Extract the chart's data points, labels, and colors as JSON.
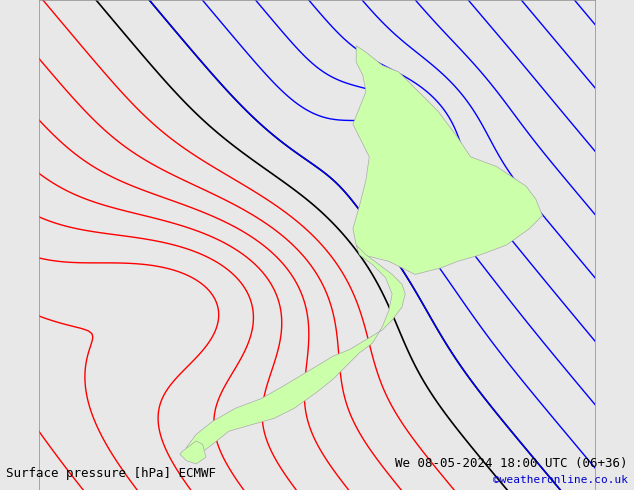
{
  "title_left": "Surface pressure [hPa] ECMWF",
  "title_right": "We 08-05-2024 18:00 UTC (06+36)",
  "copyright": "©weatheronline.co.uk",
  "background_color": "#e8e8e8",
  "land_color": "#ccffaa",
  "land_edge_color": "#aaaaaa",
  "contour_color_red": "#ff0000",
  "contour_color_blue": "#0000ff",
  "contour_color_black": "#000000",
  "contour_linewidth": 1.0,
  "label_fontsize": 7,
  "footer_fontsize": 9,
  "copyright_color": "#0000cc",
  "pressure_min": 1000,
  "pressure_max": 1030,
  "pressure_step": 1,
  "domain": [
    163,
    180,
    -48,
    -33
  ],
  "figsize": [
    6.34,
    4.9
  ],
  "dpi": 100
}
